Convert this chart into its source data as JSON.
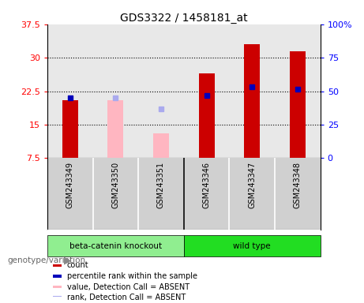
{
  "title": "GDS3322 / 1458181_at",
  "samples": [
    "GSM243349",
    "GSM243350",
    "GSM243351",
    "GSM243346",
    "GSM243347",
    "GSM243348"
  ],
  "absent": [
    false,
    true,
    true,
    false,
    false,
    false
  ],
  "count_values": [
    20.5,
    null,
    null,
    26.5,
    33.0,
    31.5
  ],
  "count_absent_values": [
    null,
    20.5,
    13.0,
    null,
    null,
    null
  ],
  "rank_values": [
    21.0,
    null,
    null,
    21.5,
    23.5,
    23.0
  ],
  "rank_absent_values": [
    null,
    21.0,
    18.5,
    null,
    null,
    null
  ],
  "ylim_left": [
    7.5,
    37.5
  ],
  "ylim_right": [
    0,
    100
  ],
  "yticks_left": [
    7.5,
    15.0,
    22.5,
    30.0,
    37.5
  ],
  "yticks_right": [
    0,
    25,
    50,
    75,
    100
  ],
  "ytick_labels_left": [
    "7.5",
    "15",
    "22.5",
    "30",
    "37.5"
  ],
  "ytick_labels_right": [
    "0",
    "25",
    "50",
    "75",
    "100%"
  ],
  "bar_width": 0.35,
  "count_color": "#cc0000",
  "rank_color": "#0000bb",
  "count_absent_color": "#ffb6c1",
  "rank_absent_color": "#aaaaee",
  "plot_bg_color": "#e8e8e8",
  "sample_panel_bg": "#d0d0d0",
  "group1_label": "beta-catenin knockout",
  "group2_label": "wild type",
  "group1_color": "#90ee90",
  "group2_color": "#22dd22",
  "group1_indices": [
    0,
    1,
    2
  ],
  "group2_indices": [
    3,
    4,
    5
  ],
  "legend_items": [
    {
      "color": "#cc0000",
      "label": "count"
    },
    {
      "color": "#0000bb",
      "label": "percentile rank within the sample"
    },
    {
      "color": "#ffb6c1",
      "label": "value, Detection Call = ABSENT"
    },
    {
      "color": "#aaaaee",
      "label": "rank, Detection Call = ABSENT"
    }
  ]
}
